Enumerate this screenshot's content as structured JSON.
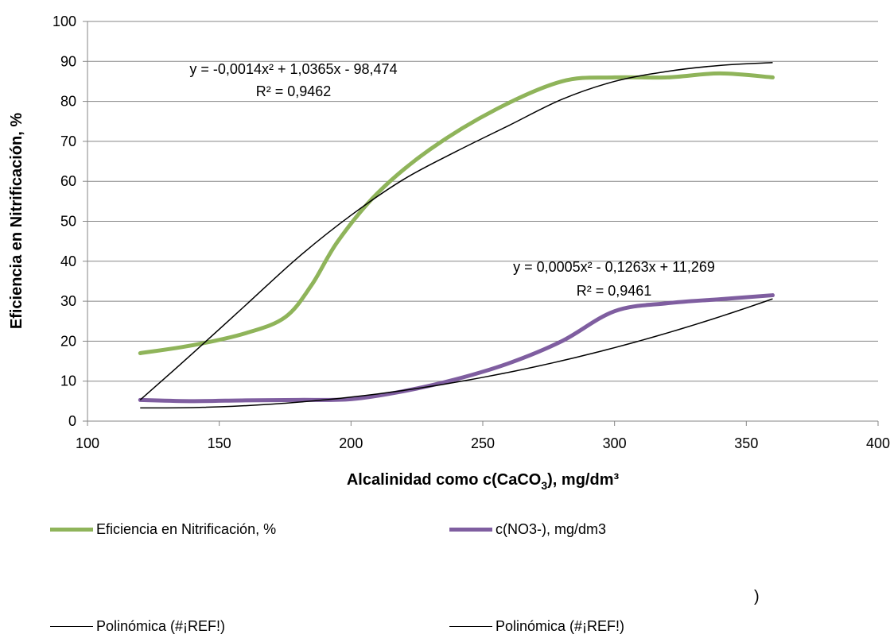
{
  "chart_data": {
    "type": "line",
    "xlabel_main": "Alcalinidad como c(CaCO",
    "xlabel_sub": "3",
    "xlabel_tail": "), mg/dm³",
    "ylabel": "Eficiencia en Nitrificación, %",
    "xlim": [
      100,
      400
    ],
    "ylim": [
      0,
      100
    ],
    "x_ticks": [
      "100",
      "150",
      "200",
      "250",
      "300",
      "350",
      "400"
    ],
    "y_ticks": [
      "0",
      "10",
      "20",
      "30",
      "40",
      "50",
      "60",
      "70",
      "80",
      "90",
      "100"
    ],
    "grid": "horizontal",
    "legend_position": "bottom",
    "series": [
      {
        "name": "Eficiencia en Nitrificación, %",
        "color": "#8fb45a",
        "smooth": true,
        "points": [
          [
            120,
            17
          ],
          [
            140,
            19
          ],
          [
            160,
            22
          ],
          [
            175,
            26
          ],
          [
            185,
            34
          ],
          [
            195,
            45
          ],
          [
            210,
            57
          ],
          [
            230,
            68
          ],
          [
            255,
            78
          ],
          [
            280,
            85
          ],
          [
            300,
            86
          ],
          [
            320,
            86
          ],
          [
            340,
            87
          ],
          [
            360,
            86
          ]
        ]
      },
      {
        "name": "c(NO3-), mg/dm3",
        "color": "#7f5ea0",
        "smooth": true,
        "points": [
          [
            120,
            5.3
          ],
          [
            140,
            5.0
          ],
          [
            160,
            5.2
          ],
          [
            180,
            5.3
          ],
          [
            200,
            5.5
          ],
          [
            220,
            7.5
          ],
          [
            240,
            10.5
          ],
          [
            260,
            14.5
          ],
          [
            280,
            20
          ],
          [
            300,
            27.5
          ],
          [
            320,
            29.5
          ],
          [
            340,
            30.5
          ],
          [
            360,
            31.5
          ]
        ]
      }
    ],
    "trendlines": [
      {
        "name": "Polinómica (#¡REF!)",
        "color": "#000000",
        "equation": "y = -0,0014x² + 1,0365x - 98,474",
        "r2": "R² = 0,9462",
        "coeffs": [
          -0.0014,
          1.0365,
          -98.474
        ],
        "x_range": [
          120,
          360
        ],
        "override_points": [
          [
            120,
            5.3
          ],
          [
            140,
            17
          ],
          [
            160,
            29
          ],
          [
            180,
            41
          ],
          [
            200,
            51.5
          ],
          [
            220,
            60.5
          ],
          [
            240,
            67.5
          ],
          [
            260,
            74
          ],
          [
            280,
            80.5
          ],
          [
            300,
            85
          ],
          [
            320,
            87.5
          ],
          [
            340,
            89
          ],
          [
            360,
            89.7
          ]
        ]
      },
      {
        "name": "Polinómica (#¡REF!)",
        "color": "#000000",
        "equation": "y = 0,0005x² - 0,1263x + 11,269",
        "r2": "R² = 0,9461",
        "coeffs": [
          0.0005,
          -0.1263,
          11.269
        ],
        "x_range": [
          120,
          360
        ]
      }
    ]
  },
  "legend": {
    "entries": [
      {
        "label": "Eficiencia en Nitrificación, %",
        "color": "#8fb45a",
        "style": "thick"
      },
      {
        "label": "c(NO3-), mg/dm3",
        "color": "#7f5ea0",
        "style": "thick"
      },
      {
        "label": "Polinómica (#¡REF!)",
        "color": "#000000",
        "style": "thin"
      },
      {
        "label": "Polinómica (#¡REF!)",
        "color": "#000000",
        "style": "thin"
      }
    ]
  },
  "stray_text": ")"
}
